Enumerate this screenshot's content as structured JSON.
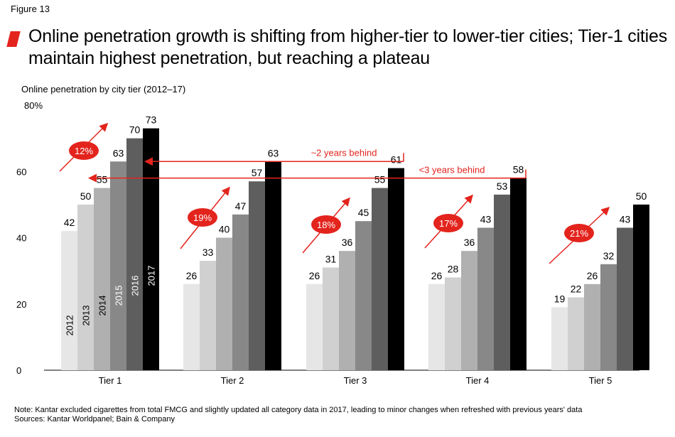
{
  "figure_label": "Figure 13",
  "title": "Online penetration growth is shifting from higher-tier to lower-tier cities; Tier-1 cities maintain highest penetration, but reaching a plateau",
  "subtitle": "Online penetration by city tier (2012–17)",
  "notes": {
    "note": "Note: Kantar excluded cigarettes from total FMCG and slightly updated all category data in 2017, leading to minor changes when refreshed with previous years' data",
    "sources": "Sources: Kantar Worldpanel; Bain & Company"
  },
  "colors": {
    "accent": "#e3241d",
    "series": [
      "#e6e6e6",
      "#d0d0d0",
      "#b0b0b0",
      "#888888",
      "#5e5e5e",
      "#000000"
    ]
  },
  "chart_data": {
    "type": "bar",
    "categories": [
      "Tier 1",
      "Tier 2",
      "Tier 3",
      "Tier 4",
      "Tier 5"
    ],
    "series": [
      {
        "name": "2012",
        "values": [
          42,
          26,
          26,
          26,
          19
        ]
      },
      {
        "name": "2013",
        "values": [
          50,
          33,
          31,
          28,
          22
        ]
      },
      {
        "name": "2014",
        "values": [
          55,
          40,
          36,
          36,
          26
        ]
      },
      {
        "name": "2015",
        "values": [
          63,
          47,
          45,
          43,
          32
        ]
      },
      {
        "name": "2016",
        "values": [
          70,
          57,
          55,
          53,
          43
        ]
      },
      {
        "name": "2017",
        "values": [
          73,
          63,
          61,
          58,
          50
        ]
      }
    ],
    "y_ticks": [
      0,
      20,
      40,
      60
    ],
    "y_top_label": "80%",
    "ylim": [
      0,
      80
    ],
    "growth_badges": [
      "12%",
      "19%",
      "18%",
      "17%",
      "21%"
    ],
    "legend": "series labels written vertically inside Tier 1 bars",
    "annotations": [
      {
        "text": "~2 years behind",
        "value": 63
      },
      {
        "text": "<3 years behind",
        "value": 58
      }
    ]
  }
}
